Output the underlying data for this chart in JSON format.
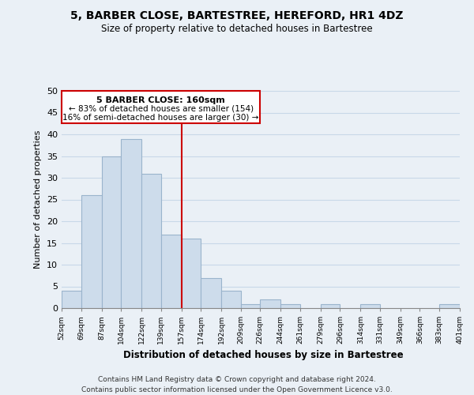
{
  "title": "5, BARBER CLOSE, BARTESTREE, HEREFORD, HR1 4DZ",
  "subtitle": "Size of property relative to detached houses in Bartestree",
  "xlabel": "Distribution of detached houses by size in Bartestree",
  "ylabel": "Number of detached properties",
  "bar_edges": [
    52,
    69,
    87,
    104,
    122,
    139,
    157,
    174,
    192,
    209,
    226,
    244,
    261,
    279,
    296,
    314,
    331,
    349,
    366,
    383,
    401
  ],
  "bar_heights": [
    4,
    26,
    35,
    39,
    31,
    17,
    16,
    7,
    4,
    1,
    2,
    1,
    0,
    1,
    0,
    1,
    0,
    0,
    0,
    1
  ],
  "bar_color": "#cddceb",
  "bar_edge_color": "#9ab4cc",
  "grid_color": "#c8d8e8",
  "reference_line_x": 157,
  "reference_line_color": "#cc0000",
  "annotation_title": "5 BARBER CLOSE: 160sqm",
  "annotation_line1": "← 83% of detached houses are smaller (154)",
  "annotation_line2": "16% of semi-detached houses are larger (30) →",
  "annotation_box_color": "#ffffff",
  "annotation_box_edge": "#cc0000",
  "ylim": [
    0,
    50
  ],
  "yticks": [
    0,
    5,
    10,
    15,
    20,
    25,
    30,
    35,
    40,
    45,
    50
  ],
  "tick_labels": [
    "52sqm",
    "69sqm",
    "87sqm",
    "104sqm",
    "122sqm",
    "139sqm",
    "157sqm",
    "174sqm",
    "192sqm",
    "209sqm",
    "226sqm",
    "244sqm",
    "261sqm",
    "279sqm",
    "296sqm",
    "314sqm",
    "331sqm",
    "349sqm",
    "366sqm",
    "383sqm",
    "401sqm"
  ],
  "footer_line1": "Contains HM Land Registry data © Crown copyright and database right 2024.",
  "footer_line2": "Contains public sector information licensed under the Open Government Licence v3.0.",
  "background_color": "#eaf0f6"
}
